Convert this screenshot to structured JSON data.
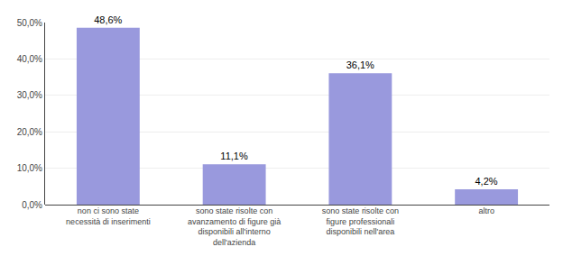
{
  "chart_data": {
    "type": "bar",
    "categories": [
      "non ci sono state\nnecessità di inserimenti",
      "sono state risolte con\navanzamento di figure già\ndisponibili all'interno\ndell'azienda",
      "sono state risolte con\nfigure professionali\ndisponibili nell'area",
      "altro"
    ],
    "values": [
      48.6,
      11.1,
      36.1,
      4.2
    ],
    "value_labels": [
      "48,6%",
      "11,1%",
      "36,1%",
      "4,2%"
    ],
    "data_labels": true,
    "color": "#9999dd",
    "ylim": [
      0,
      50
    ],
    "yticks": [
      {
        "value": 0,
        "label": "0,0%"
      },
      {
        "value": 10,
        "label": "10,0%"
      },
      {
        "value": 20,
        "label": "20,0%"
      },
      {
        "value": 30,
        "label": "30,0%"
      },
      {
        "value": 40,
        "label": "40,0%"
      },
      {
        "value": 50,
        "label": "50,0%"
      }
    ],
    "grid": true
  }
}
